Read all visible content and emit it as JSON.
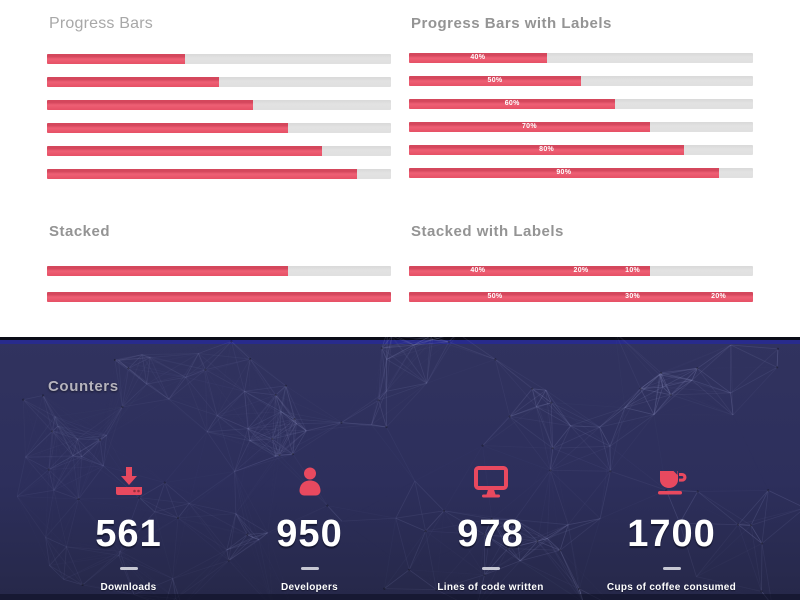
{
  "palette": {
    "accent": "#e8495f",
    "accent_dark": "#d4475c",
    "track_gray": "#e0e0e0",
    "section_bg": "#2d2f5c",
    "plexus_line": "#8a8dbd",
    "title_light_gray": "#a8a8a8",
    "title_bold_gray": "#949494",
    "counter_text": "#ffffff"
  },
  "progress_bars": {
    "title": "Progress Bars",
    "values": [
      40,
      50,
      60,
      70,
      80,
      90
    ]
  },
  "progress_bars_labeled": {
    "title": "Progress Bars with Labels",
    "bars": [
      {
        "value": 40,
        "label": "40%"
      },
      {
        "value": 50,
        "label": "50%"
      },
      {
        "value": 60,
        "label": "60%"
      },
      {
        "value": 70,
        "label": "70%"
      },
      {
        "value": 80,
        "label": "80%"
      },
      {
        "value": 90,
        "label": "90%"
      }
    ]
  },
  "stacked": {
    "title": "Stacked",
    "bars": [
      {
        "segments": [
          40,
          20,
          10
        ]
      },
      {
        "segments": [
          50,
          30,
          20
        ]
      }
    ]
  },
  "stacked_labeled": {
    "title": "Stacked with Labels",
    "bars": [
      {
        "segments": [
          {
            "value": 40,
            "label": "40%"
          },
          {
            "value": 20,
            "label": "20%"
          },
          {
            "value": 10,
            "label": "10%"
          }
        ]
      },
      {
        "segments": [
          {
            "value": 50,
            "label": "50%"
          },
          {
            "value": 30,
            "label": "30%"
          },
          {
            "value": 20,
            "label": "20%"
          }
        ]
      }
    ]
  },
  "counters": {
    "title": "Counters",
    "items": [
      {
        "icon": "download-icon",
        "value": "561",
        "label": "Downloads"
      },
      {
        "icon": "person-icon",
        "value": "950",
        "label": "Developers"
      },
      {
        "icon": "monitor-icon",
        "value": "978",
        "label": "Lines of code written"
      },
      {
        "icon": "coffee-cup-icon",
        "value": "1700",
        "label": "Cups of coffee consumed"
      }
    ]
  }
}
